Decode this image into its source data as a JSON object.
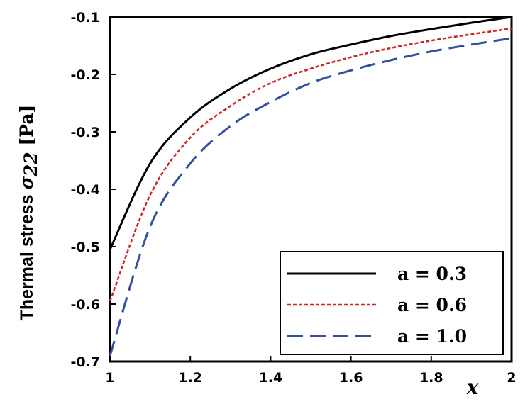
{
  "chart_data": {
    "type": "line",
    "xlabel": "x",
    "ylabel": {
      "text": "Thermal stress ",
      "symbol": "σ",
      "subscript": "22",
      "unit": " [Pa]"
    },
    "xlim": [
      1,
      2
    ],
    "ylim": [
      -0.7,
      -0.1
    ],
    "grid": false,
    "legend_position": "bottom-right",
    "x_ticks": [
      "1",
      "1.2",
      "1.4",
      "1.6",
      "1.8",
      "2"
    ],
    "y_ticks": [
      "-0.1",
      "-0.2",
      "-0.3",
      "-0.4",
      "-0.5",
      "-0.6",
      "-0.7"
    ],
    "x": [
      1.0,
      1.1,
      1.2,
      1.3,
      1.4,
      1.5,
      1.6,
      1.7,
      1.8,
      1.9,
      2.0
    ],
    "series": [
      {
        "name": "a = 0.3",
        "color": "#000000",
        "style": "solid",
        "values": [
          -0.505,
          -0.355,
          -0.275,
          -0.225,
          -0.19,
          -0.165,
          -0.148,
          -0.133,
          -0.121,
          -0.11,
          -0.1
        ]
      },
      {
        "name": "a = 0.6",
        "color": "#cc2222",
        "style": "dotted",
        "values": [
          -0.595,
          -0.41,
          -0.31,
          -0.255,
          -0.215,
          -0.19,
          -0.17,
          -0.154,
          -0.141,
          -0.13,
          -0.12
        ]
      },
      {
        "name": "a = 1.0",
        "color": "#3350a0",
        "style": "dashed",
        "values": [
          -0.69,
          -0.465,
          -0.355,
          -0.29,
          -0.248,
          -0.215,
          -0.193,
          -0.175,
          -0.16,
          -0.148,
          -0.137
        ]
      }
    ]
  }
}
